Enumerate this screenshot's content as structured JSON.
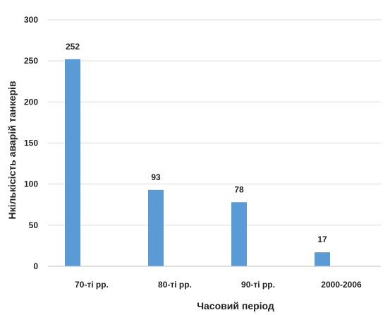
{
  "chart_data": {
    "type": "bar",
    "categories": [
      "70-ті рр.",
      "80-ті рр.",
      "90-ті рр.",
      "2000-2006"
    ],
    "values": [
      252,
      93,
      78,
      17
    ],
    "data_labels": [
      "252",
      "93",
      "78",
      "17"
    ],
    "title": "",
    "xlabel": "Часовий період",
    "ylabel": "Нкількісість аварій танкерів",
    "ylim": [
      0,
      300
    ],
    "yticks": [
      0,
      50,
      100,
      150,
      200,
      250,
      300
    ],
    "grid": true,
    "legend": "none",
    "bar_color": "#5b9bd5"
  }
}
